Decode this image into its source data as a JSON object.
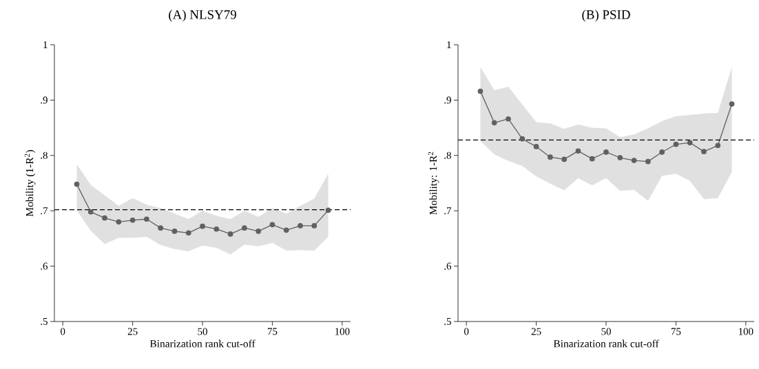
{
  "chart_data": [
    {
      "type": "line",
      "title": "(A) NLSY79",
      "xlabel": "Binarization rank cut-off",
      "ylabel": "Mobility (1-R$^{2}$)",
      "x": [
        5,
        10,
        15,
        20,
        25,
        30,
        35,
        40,
        45,
        50,
        55,
        60,
        65,
        70,
        75,
        80,
        85,
        90,
        95
      ],
      "series": [
        {
          "color": "#606060",
          "values": [
            0.748,
            0.698,
            0.687,
            0.68,
            0.683,
            0.685,
            0.669,
            0.663,
            0.66,
            0.672,
            0.667,
            0.658,
            0.669,
            0.663,
            0.675,
            0.665,
            0.673,
            0.673,
            0.701
          ],
          "lower": [
            0.701,
            0.664,
            0.64,
            0.651,
            0.651,
            0.653,
            0.638,
            0.631,
            0.627,
            0.637,
            0.633,
            0.621,
            0.639,
            0.636,
            0.642,
            0.628,
            0.629,
            0.628,
            0.653
          ],
          "upper": [
            0.784,
            0.747,
            0.728,
            0.709,
            0.723,
            0.711,
            0.705,
            0.695,
            0.685,
            0.7,
            0.691,
            0.685,
            0.7,
            0.689,
            0.705,
            0.695,
            0.709,
            0.722,
            0.767
          ]
        }
      ],
      "xlim": [
        -3,
        103
      ],
      "ylim": [
        0.5,
        1
      ],
      "xticks": [
        0,
        25,
        50,
        75,
        100
      ],
      "yticks": [
        {
          "value": 0.5,
          "label": ".5"
        },
        {
          "value": 0.6,
          "label": ".6"
        },
        {
          "value": 0.7,
          "label": ".7"
        },
        {
          "value": 0.8,
          "label": ".8"
        },
        {
          "value": 0.9,
          "label": ".9"
        },
        1
      ],
      "ref_lines": [
        {
          "axis": "y",
          "value": 0.702,
          "color": "#000000",
          "line_style": "dashed"
        }
      ],
      "marker": "circle",
      "grid": false
    },
    {
      "type": "line",
      "title": "(B) PSID",
      "xlabel": "Binarization rank cut-off",
      "ylabel": "Mobility: 1-R$^{2}$",
      "x": [
        5,
        10,
        15,
        20,
        25,
        30,
        35,
        40,
        45,
        50,
        55,
        60,
        65,
        70,
        75,
        80,
        85,
        90,
        95
      ],
      "series": [
        {
          "color": "#606060",
          "values": [
            0.916,
            0.859,
            0.866,
            0.83,
            0.816,
            0.797,
            0.793,
            0.808,
            0.794,
            0.806,
            0.796,
            0.791,
            0.789,
            0.806,
            0.82,
            0.823,
            0.807,
            0.818,
            0.893
          ],
          "lower": [
            0.826,
            0.802,
            0.79,
            0.781,
            0.762,
            0.749,
            0.737,
            0.759,
            0.746,
            0.759,
            0.736,
            0.738,
            0.718,
            0.763,
            0.767,
            0.754,
            0.721,
            0.723,
            0.77
          ],
          "upper": [
            0.96,
            0.918,
            0.924,
            0.892,
            0.86,
            0.858,
            0.848,
            0.856,
            0.85,
            0.849,
            0.833,
            0.838,
            0.849,
            0.862,
            0.871,
            0.873,
            0.876,
            0.877,
            0.96
          ]
        }
      ],
      "xlim": [
        -3,
        103
      ],
      "ylim": [
        0.5,
        1
      ],
      "xticks": [
        0,
        25,
        50,
        75,
        100
      ],
      "yticks": [
        {
          "value": 0.5,
          "label": ".5"
        },
        {
          "value": 0.6,
          "label": ".6"
        },
        {
          "value": 0.7,
          "label": ".7"
        },
        {
          "value": 0.8,
          "label": ".8"
        },
        {
          "value": 0.9,
          "label": ".9"
        },
        1
      ],
      "ref_lines": [
        {
          "axis": "y",
          "value": 0.828,
          "color": "#000000",
          "line_style": "dashed"
        }
      ],
      "marker": "circle",
      "grid": false
    }
  ]
}
